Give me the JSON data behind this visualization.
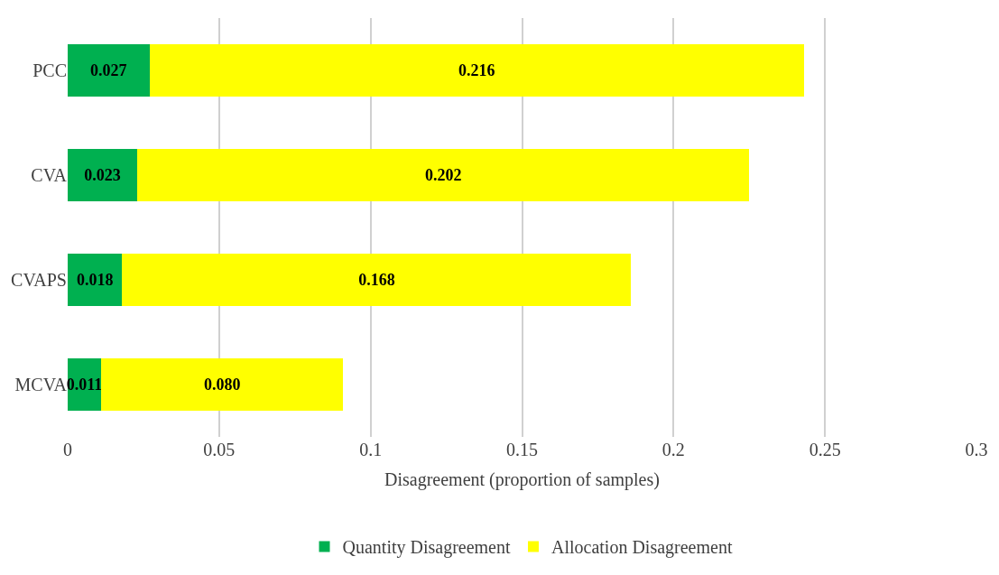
{
  "chart_data": {
    "type": "bar",
    "orientation": "horizontal",
    "stacked": true,
    "xlabel": "Disagreement (proportion of samples)",
    "categories": [
      "PCC",
      "CVA",
      "CVAPS",
      "MCVA"
    ],
    "series": [
      {
        "name": "Quantity Disagreement",
        "color": "#00b050",
        "values": [
          0.027,
          0.023,
          0.018,
          0.011
        ],
        "value_labels": [
          "0.027",
          "0.023",
          "0.018",
          "0.011"
        ]
      },
      {
        "name": "Allocation Disagreement",
        "color": "#ffff00",
        "values": [
          0.216,
          0.202,
          0.168,
          0.08
        ],
        "value_labels": [
          "0.216",
          "0.202",
          "0.168",
          "0.080"
        ]
      }
    ],
    "xlim": [
      0,
      0.3
    ],
    "xticks": [
      0,
      0.05,
      0.1,
      0.15,
      0.2,
      0.25,
      0.3
    ],
    "grid": "x",
    "legend": "bottom"
  }
}
